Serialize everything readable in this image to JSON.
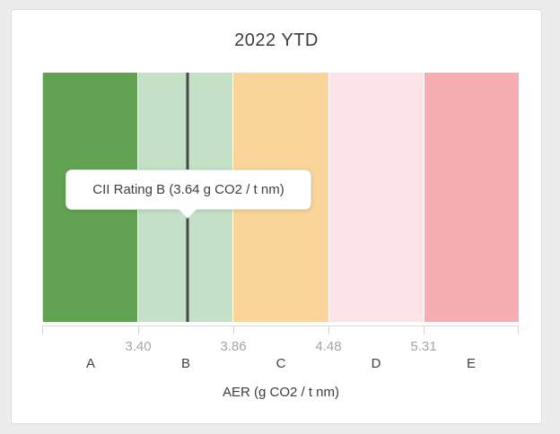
{
  "chart_data": {
    "type": "bar",
    "variant": "rating-band-strip",
    "title": "2022 YTD",
    "xlabel": "AER (g CO2 / t nm)",
    "categories": [
      "A",
      "B",
      "C",
      "D",
      "E"
    ],
    "band_colors": [
      "#61a353",
      "#c4e0c6",
      "#f9d59a",
      "#fbe3e7",
      "#f6aeb3"
    ],
    "boundary_tick_labels": [
      "3.40",
      "3.86",
      "4.48",
      "5.31"
    ],
    "boundary_values": [
      3.4,
      3.86,
      4.48,
      5.31
    ],
    "bands_equal_width": true,
    "grid": false,
    "legend_position": "none",
    "marker": {
      "value": 3.64,
      "rating": "B",
      "band_index": 1,
      "lower_bound": 3.4,
      "upper_bound": 3.86,
      "color": "#474747"
    }
  },
  "tooltip": {
    "text": "CII Rating B (3.64 g CO2 / t nm)"
  }
}
